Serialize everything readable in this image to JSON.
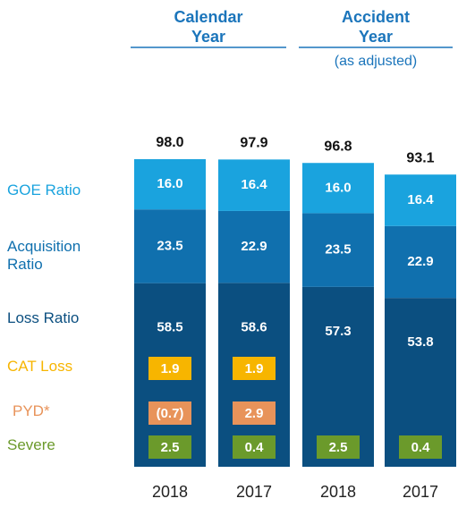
{
  "chart_data": {
    "type": "stacked-bar",
    "groups": [
      {
        "label": "Calendar Year"
      },
      {
        "label": "Accident Year",
        "note": "(as adjusted)"
      }
    ],
    "categories": [
      "2018",
      "2017",
      "2018",
      "2017"
    ],
    "series": [
      {
        "name": "Loss Ratio",
        "color": "#0b4f80",
        "values": [
          58.5,
          58.6,
          57.3,
          53.8
        ],
        "value_labels": [
          "58.5",
          "58.6",
          "57.3",
          "53.8"
        ]
      },
      {
        "name": "Acquisition Ratio",
        "color": "#1070ae",
        "values": [
          23.5,
          22.9,
          23.5,
          22.9
        ],
        "value_labels": [
          "23.5",
          "22.9",
          "23.5",
          "22.9"
        ]
      },
      {
        "name": "GOE Ratio",
        "color": "#1aa3de",
        "values": [
          16.0,
          16.4,
          16.0,
          16.4
        ],
        "value_labels": [
          "16.0",
          "16.4",
          "16.0",
          "16.4"
        ]
      }
    ],
    "totals": [
      98.0,
      97.9,
      96.8,
      93.1
    ],
    "total_labels": [
      "98.0",
      "97.9",
      "96.8",
      "93.1"
    ],
    "components": [
      {
        "name": "CAT Loss",
        "color": "#f7b500",
        "values": [
          1.9,
          1.9,
          null,
          null
        ],
        "value_labels": [
          "1.9",
          "1.9",
          null,
          null
        ]
      },
      {
        "name": "PYD*",
        "color": "#e8935a",
        "values": [
          -0.7,
          2.9,
          null,
          null
        ],
        "value_labels": [
          "(0.7)",
          "2.9",
          null,
          null
        ]
      },
      {
        "name": "Severe",
        "color": "#6b9a2b",
        "values": [
          2.5,
          0.4,
          2.5,
          0.4
        ],
        "value_labels": [
          "2.5",
          "0.4",
          "2.5",
          "0.4"
        ]
      }
    ]
  }
}
